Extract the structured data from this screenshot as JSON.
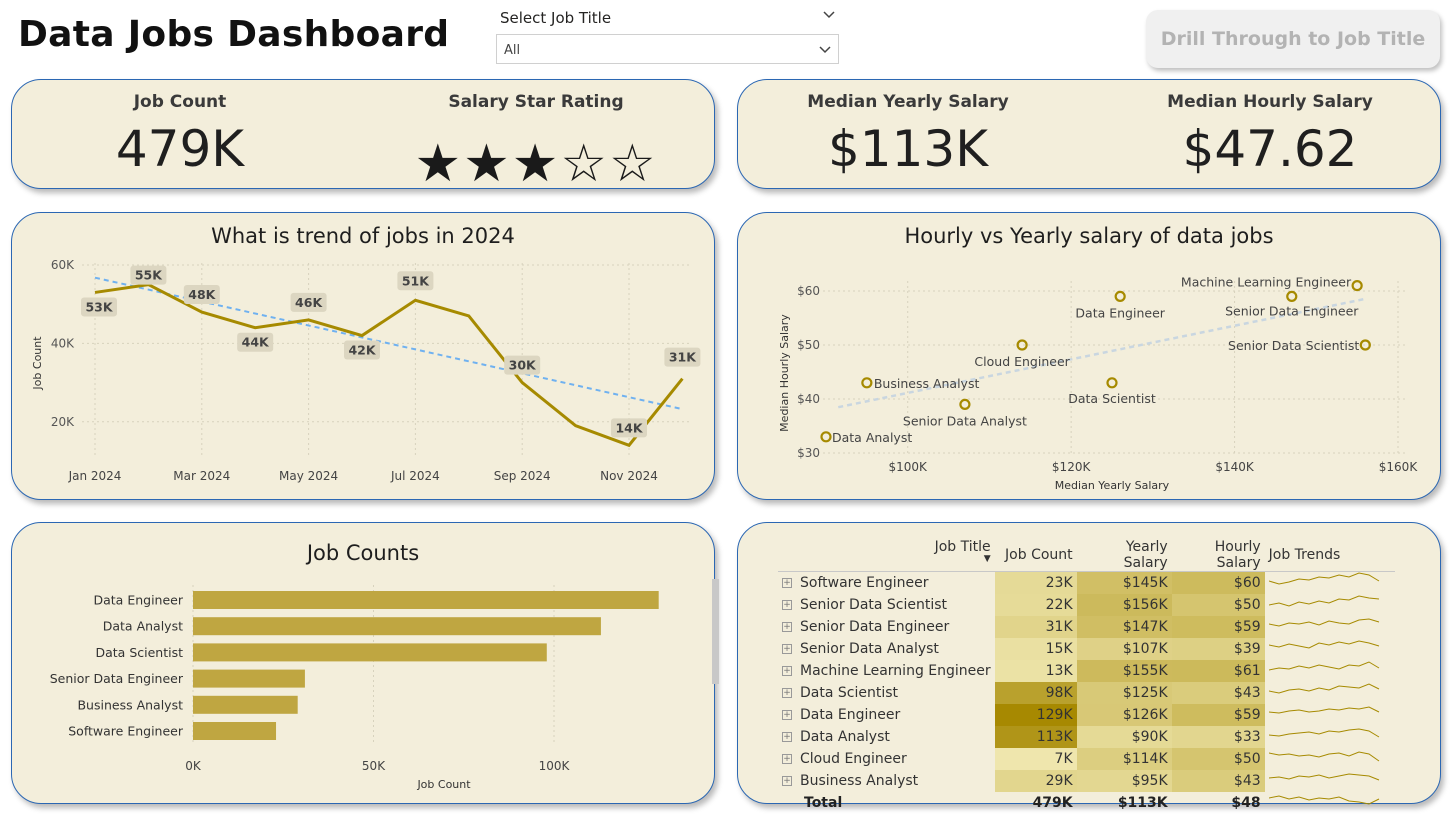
{
  "header": {
    "title": "Data Jobs Dashboard",
    "slicer_label": "Select Job Title",
    "slicer_value": "All",
    "drill_button": "Drill Through to Job Title"
  },
  "kpis": {
    "job_count_label": "Job Count",
    "job_count_value": "479K",
    "star_label": "Salary Star Rating",
    "star_rating": 3,
    "star_max": 5,
    "median_yearly_label": "Median Yearly Salary",
    "median_yearly_value": "$113K",
    "median_hourly_label": "Median Hourly Salary",
    "median_hourly_value": "$47.62"
  },
  "colors": {
    "card_bg": "#f3eedb",
    "card_border": "#2b67b3",
    "gold": "#a68a00",
    "bar": "#bfa641",
    "trend": "#6fb1f0"
  },
  "chart_data": [
    {
      "type": "line",
      "title": "What is trend of jobs in 2024",
      "ylabel": "Job Count",
      "xlabel": "",
      "x": [
        "Jan 2024",
        "Feb 2024",
        "Mar 2024",
        "Apr 2024",
        "May 2024",
        "Jun 2024",
        "Jul 2024",
        "Aug 2024",
        "Sep 2024",
        "Oct 2024",
        "Nov 2024",
        "Dec 2024"
      ],
      "xticks": [
        "Jan 2024",
        "Mar 2024",
        "May 2024",
        "Jul 2024",
        "Sep 2024",
        "Nov 2024"
      ],
      "values": [
        53000,
        55000,
        48000,
        44000,
        46000,
        42000,
        51000,
        47000,
        30000,
        19000,
        14000,
        31000
      ],
      "data_labels": [
        "53K",
        "55K",
        "48K",
        "44K",
        "46K",
        "42K",
        "51K",
        "",
        "30K",
        "",
        "14K",
        "31K"
      ],
      "yticks": [
        "60K",
        "40K",
        "20K"
      ],
      "ylim": [
        10000,
        60000
      ],
      "trendline": true
    },
    {
      "type": "scatter",
      "title": "Hourly vs Yearly salary of data jobs",
      "xlabel": "Median Yearly Salary",
      "ylabel": "Median Hourly Salary",
      "xticks": [
        "$100K",
        "$120K",
        "$140K",
        "$160K"
      ],
      "yticks": [
        "$60",
        "$50",
        "$40",
        "$30"
      ],
      "xlim": [
        90000,
        160000
      ],
      "ylim": [
        30,
        60
      ],
      "points": [
        {
          "label": "Machine Learning Engineer",
          "x": 155000,
          "y": 61
        },
        {
          "label": "Senior Data Engineer",
          "x": 147000,
          "y": 59
        },
        {
          "label": "Senior Data Scientist",
          "x": 156000,
          "y": 50
        },
        {
          "label": "Data Engineer",
          "x": 126000,
          "y": 59
        },
        {
          "label": "Cloud Engineer",
          "x": 114000,
          "y": 50
        },
        {
          "label": "Data Scientist",
          "x": 125000,
          "y": 43
        },
        {
          "label": "Business Analyst",
          "x": 95000,
          "y": 43
        },
        {
          "label": "Senior Data Analyst",
          "x": 107000,
          "y": 39
        },
        {
          "label": "Data Analyst",
          "x": 90000,
          "y": 33
        }
      ],
      "trendline": true
    },
    {
      "type": "bar",
      "title": "Job Counts",
      "xlabel": "Job Count",
      "categories": [
        "Data Engineer",
        "Data Analyst",
        "Data Scientist",
        "Senior Data Engineer",
        "Business Analyst",
        "Software Engineer"
      ],
      "values": [
        129000,
        113000,
        98000,
        31000,
        29000,
        23000
      ],
      "xticks": [
        "0K",
        "50K",
        "100K"
      ],
      "xlim": [
        0,
        130000
      ]
    }
  ],
  "matrix": {
    "headers": [
      "Job Title",
      "Job Count",
      "Yearly Salary",
      "Hourly Salary",
      "Job Trends"
    ],
    "rows": [
      {
        "title": "Software Engineer",
        "count": "23K",
        "count_v": 23,
        "yearly": "$145K",
        "yearly_v": 145,
        "hourly": "$60",
        "hourly_v": 60
      },
      {
        "title": "Senior Data Scientist",
        "count": "22K",
        "count_v": 22,
        "yearly": "$156K",
        "yearly_v": 156,
        "hourly": "$50",
        "hourly_v": 50
      },
      {
        "title": "Senior Data Engineer",
        "count": "31K",
        "count_v": 31,
        "yearly": "$147K",
        "yearly_v": 147,
        "hourly": "$59",
        "hourly_v": 59
      },
      {
        "title": "Senior Data Analyst",
        "count": "15K",
        "count_v": 15,
        "yearly": "$107K",
        "yearly_v": 107,
        "hourly": "$39",
        "hourly_v": 39
      },
      {
        "title": "Machine Learning Engineer",
        "count": "13K",
        "count_v": 13,
        "yearly": "$155K",
        "yearly_v": 155,
        "hourly": "$61",
        "hourly_v": 61
      },
      {
        "title": "Data Scientist",
        "count": "98K",
        "count_v": 98,
        "yearly": "$125K",
        "yearly_v": 125,
        "hourly": "$43",
        "hourly_v": 43
      },
      {
        "title": "Data Engineer",
        "count": "129K",
        "count_v": 129,
        "yearly": "$126K",
        "yearly_v": 126,
        "hourly": "$59",
        "hourly_v": 59
      },
      {
        "title": "Data Analyst",
        "count": "113K",
        "count_v": 113,
        "yearly": "$90K",
        "yearly_v": 90,
        "hourly": "$33",
        "hourly_v": 33
      },
      {
        "title": "Cloud Engineer",
        "count": "7K",
        "count_v": 7,
        "yearly": "$114K",
        "yearly_v": 114,
        "hourly": "$50",
        "hourly_v": 50
      },
      {
        "title": "Business Analyst",
        "count": "29K",
        "count_v": 29,
        "yearly": "$95K",
        "yearly_v": 95,
        "hourly": "$43",
        "hourly_v": 43
      }
    ],
    "total": {
      "title": "Total",
      "count": "479K",
      "yearly": "$113K",
      "hourly": "$48"
    }
  }
}
